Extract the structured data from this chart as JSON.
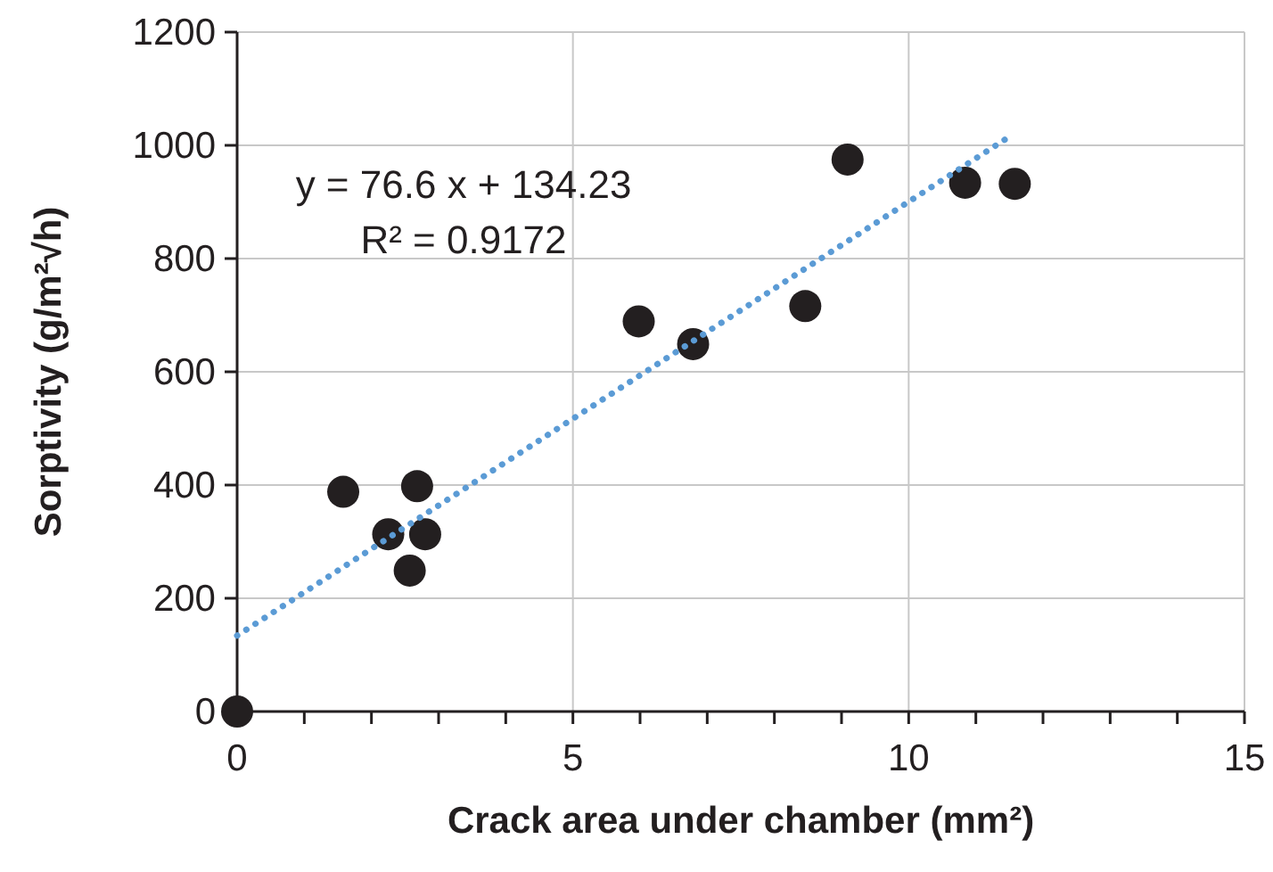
{
  "chart_data": {
    "type": "scatter",
    "xlabel": "Crack area under chamber (mm²)",
    "ylabel": "Sorptivity (g/m²√h)",
    "annotations": [
      "y = 76.6 x + 134.23",
      "R² = 0.9172"
    ],
    "xlim": [
      0,
      15
    ],
    "xticks": [
      0,
      {
        "value": 1,
        "label": null
      },
      {
        "value": 2,
        "label": null
      },
      {
        "value": 3,
        "label": null
      },
      {
        "value": 4,
        "label": null
      },
      5,
      {
        "value": 6,
        "label": null
      },
      {
        "value": 7,
        "label": null
      },
      {
        "value": 8,
        "label": null
      },
      {
        "value": 9,
        "label": null
      },
      10,
      {
        "value": 11,
        "label": null
      },
      {
        "value": 12,
        "label": null
      },
      {
        "value": 13,
        "label": null
      },
      {
        "value": 14,
        "label": null
      },
      15
    ],
    "ylim": [
      0,
      1200
    ],
    "yticks": [
      0,
      200,
      400,
      600,
      800,
      1000,
      1200
    ],
    "grid": true,
    "series": [
      {
        "color": "#231f20",
        "marker": "circle",
        "x": [
          0,
          1.58,
          2.25,
          2.57,
          2.68,
          2.8,
          5.98,
          6.79,
          8.46,
          9.09,
          10.84,
          11.58
        ],
        "values": [
          0,
          388,
          313,
          249,
          398,
          313,
          689,
          649,
          716,
          975,
          934,
          932
        ]
      },
      {
        "type": "line",
        "color": "#5b9bd5",
        "marker": "none",
        "line_style": "dotted",
        "x": [
          0,
          11.47
        ],
        "values": [
          134,
          1013
        ]
      }
    ]
  }
}
